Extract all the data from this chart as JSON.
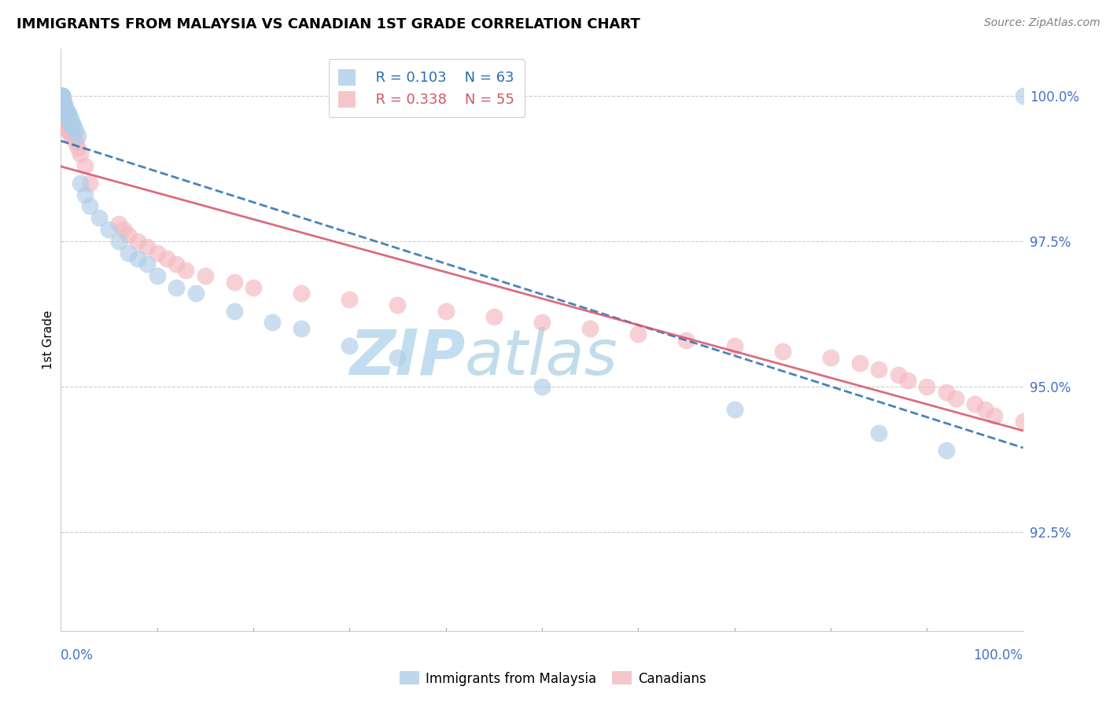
{
  "title": "IMMIGRANTS FROM MALAYSIA VS CANADIAN 1ST GRADE CORRELATION CHART",
  "source": "Source: ZipAtlas.com",
  "ylabel": "1st Grade",
  "ytick_values": [
    0.925,
    0.95,
    0.975,
    1.0
  ],
  "ytick_labels": [
    "92.5%",
    "95.0%",
    "97.5%",
    "100.0%"
  ],
  "xmin": 0.0,
  "xmax": 1.0,
  "ymin": 0.908,
  "ymax": 1.008,
  "r_blue": "R = 0.103",
  "n_blue": "N = 63",
  "r_pink": "R = 0.338",
  "n_pink": "N = 55",
  "legend_blue_label": "Immigrants from Malaysia",
  "legend_pink_label": "Canadians",
  "blue_fill": "#aecde8",
  "pink_fill": "#f4b8c1",
  "blue_line_color": "#2b6cb0",
  "pink_line_color": "#d4546a",
  "watermark_color": "#daeef8",
  "blue_x": [
    0.0005,
    0.0005,
    0.0008,
    0.001,
    0.001,
    0.001,
    0.001,
    0.0012,
    0.0012,
    0.0015,
    0.0015,
    0.002,
    0.002,
    0.002,
    0.0022,
    0.0025,
    0.003,
    0.003,
    0.003,
    0.0035,
    0.004,
    0.004,
    0.004,
    0.004,
    0.005,
    0.005,
    0.005,
    0.006,
    0.006,
    0.007,
    0.007,
    0.007,
    0.008,
    0.009,
    0.01,
    0.01,
    0.011,
    0.012,
    0.013,
    0.015,
    0.018,
    0.02,
    0.025,
    0.03,
    0.04,
    0.05,
    0.06,
    0.07,
    0.08,
    0.09,
    0.1,
    0.12,
    0.14,
    0.18,
    0.22,
    0.25,
    0.3,
    0.35,
    0.5,
    0.7,
    0.85,
    0.92,
    1.0
  ],
  "blue_y": [
    1.0,
    1.0,
    1.0,
    1.0,
    1.0,
    1.0,
    1.0,
    1.0,
    0.999,
    0.999,
    0.999,
    0.999,
    0.999,
    0.999,
    0.999,
    0.999,
    0.999,
    0.998,
    0.998,
    0.998,
    0.998,
    0.998,
    0.997,
    0.997,
    0.998,
    0.997,
    0.997,
    0.997,
    0.997,
    0.997,
    0.997,
    0.996,
    0.997,
    0.996,
    0.996,
    0.995,
    0.995,
    0.995,
    0.995,
    0.994,
    0.993,
    0.985,
    0.983,
    0.981,
    0.979,
    0.977,
    0.975,
    0.973,
    0.972,
    0.971,
    0.969,
    0.967,
    0.966,
    0.963,
    0.961,
    0.96,
    0.957,
    0.955,
    0.95,
    0.946,
    0.942,
    0.939,
    1.0
  ],
  "pink_x": [
    0.001,
    0.001,
    0.002,
    0.002,
    0.003,
    0.003,
    0.004,
    0.004,
    0.005,
    0.005,
    0.006,
    0.007,
    0.008,
    0.01,
    0.012,
    0.015,
    0.018,
    0.02,
    0.025,
    0.03,
    0.06,
    0.065,
    0.07,
    0.08,
    0.09,
    0.1,
    0.11,
    0.12,
    0.13,
    0.15,
    0.18,
    0.2,
    0.25,
    0.3,
    0.35,
    0.4,
    0.45,
    0.5,
    0.55,
    0.6,
    0.65,
    0.7,
    0.75,
    0.8,
    0.83,
    0.85,
    0.87,
    0.88,
    0.9,
    0.92,
    0.93,
    0.95,
    0.96,
    0.97,
    1.0
  ],
  "pink_y": [
    0.999,
    0.998,
    0.998,
    0.997,
    0.997,
    0.996,
    0.997,
    0.995,
    0.996,
    0.995,
    0.995,
    0.994,
    0.994,
    0.993,
    0.993,
    0.992,
    0.991,
    0.99,
    0.988,
    0.985,
    0.978,
    0.977,
    0.976,
    0.975,
    0.974,
    0.973,
    0.972,
    0.971,
    0.97,
    0.969,
    0.968,
    0.967,
    0.966,
    0.965,
    0.964,
    0.963,
    0.962,
    0.961,
    0.96,
    0.959,
    0.958,
    0.957,
    0.956,
    0.955,
    0.954,
    0.953,
    0.952,
    0.951,
    0.95,
    0.949,
    0.948,
    0.947,
    0.946,
    0.945,
    0.944
  ]
}
